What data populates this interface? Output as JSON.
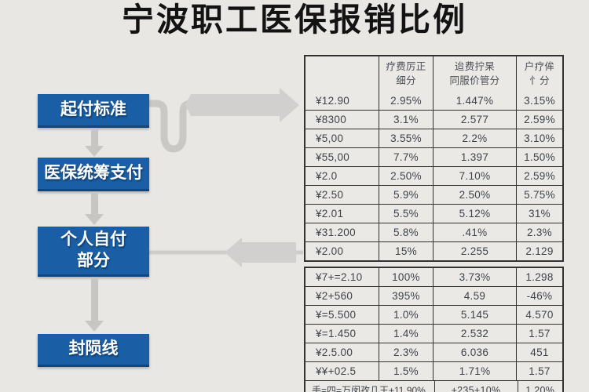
{
  "title": "宁波职工医保报销比例",
  "flow": {
    "boxes": [
      {
        "line1": "起付标准"
      },
      {
        "line1": "医保统筹支付"
      },
      {
        "line1": "个人自付",
        "line2": "部分"
      },
      {
        "line1": "封陨线"
      }
    ]
  },
  "table": {
    "headers": [
      {
        "line1": "",
        "line2": ""
      },
      {
        "line1": "疗费厉正",
        "line2": "细分"
      },
      {
        "line1": "迨费拧杲",
        "line2": "同服价管分"
      },
      {
        "line1": "户疗侔",
        "line2": "忄分"
      }
    ],
    "upper_rows": [
      [
        "¥12.90",
        "2.95%",
        "1.447%",
        "3.15%"
      ],
      [
        "¥8300",
        "3.1%",
        "2.577",
        "2.59%"
      ],
      [
        "¥5,00",
        "3.55%",
        "2.2%",
        "3.10%"
      ],
      [
        "¥55,00",
        "7.7%",
        "1.397",
        "1.50%"
      ],
      [
        "¥2.0",
        "2.50%",
        "7.10%",
        "2.59%"
      ],
      [
        "¥2.50",
        "5.9%",
        "2.50%",
        "5.75%"
      ],
      [
        "¥2.01",
        "5.5%",
        "5.12%",
        "31%"
      ],
      [
        "¥31.200",
        "5.8%",
        ".41%",
        "2.3%"
      ],
      [
        "¥2.00",
        "15%",
        "2.255",
        "2.129"
      ]
    ],
    "lower_rows": [
      [
        "¥7+=2.10",
        "100%",
        "3.73%",
        "1.298"
      ],
      [
        "¥2+560",
        "395%",
        "4.59",
        "-46%"
      ],
      [
        "¥=5.500",
        "1.0%",
        "5.145",
        "4.570"
      ],
      [
        "¥=1.450",
        "1.4%",
        "2.532",
        "1.57"
      ],
      [
        "¥2.5.00",
        "2.3%",
        "6.036",
        "451"
      ],
      [
        "¥¥+02.5",
        "1.5%",
        "1.71%",
        "1.57"
      ]
    ],
    "footer_row": [
      "手=四=万闵孜几王+11.90%",
      "+235+10%",
      "1.20%"
    ]
  },
  "colors": {
    "accent_blue": "#1a5fa6",
    "arrow_gray": "#d1d0ce",
    "background": "#e9e7e4",
    "table_line": "#323232",
    "table_text": "#3e4348"
  }
}
